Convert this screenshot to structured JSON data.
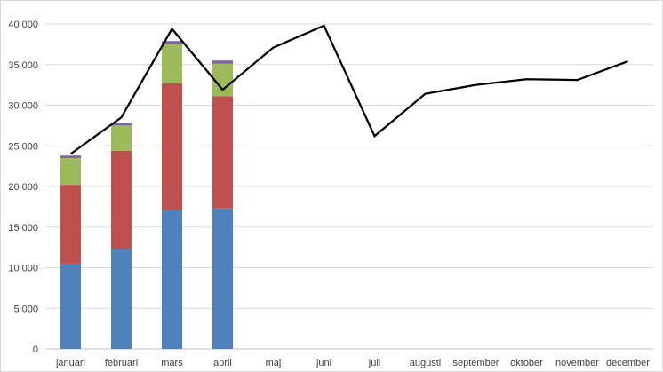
{
  "chart_data": {
    "type": "bar",
    "stacked": true,
    "categories": [
      "januari",
      "februari",
      "mars",
      "april",
      "maj",
      "juni",
      "juli",
      "augusti",
      "september",
      "oktober",
      "november",
      "december"
    ],
    "series": [
      {
        "type": "bar",
        "color": "#4f81bd",
        "values": [
          10500,
          12300,
          17100,
          17300,
          null,
          null,
          null,
          null,
          null,
          null,
          null,
          null
        ]
      },
      {
        "type": "bar",
        "color": "#c0504d",
        "values": [
          9700,
          12100,
          15600,
          13800,
          null,
          null,
          null,
          null,
          null,
          null,
          null,
          null
        ]
      },
      {
        "type": "bar",
        "color": "#9bbb59",
        "values": [
          3300,
          3100,
          4800,
          4000,
          null,
          null,
          null,
          null,
          null,
          null,
          null,
          null
        ]
      },
      {
        "type": "bar",
        "color": "#8064a2",
        "values": [
          300,
          300,
          400,
          400,
          null,
          null,
          null,
          null,
          null,
          null,
          null,
          null
        ]
      },
      {
        "type": "line",
        "color": "#000000",
        "values": [
          24000,
          28500,
          39400,
          31900,
          37100,
          39800,
          26200,
          31400,
          32500,
          33200,
          33100,
          35400
        ]
      }
    ],
    "ylim": [
      0,
      40000
    ],
    "yticks": [
      0,
      5000,
      10000,
      15000,
      20000,
      25000,
      30000,
      35000,
      40000
    ],
    "ytick_labels": [
      "0",
      "5 000",
      "10 000",
      "15 000",
      "20 000",
      "25 000",
      "30 000",
      "35 000",
      "40 000"
    ],
    "grid": true,
    "legend": "none",
    "title": "",
    "xlabel": "",
    "ylabel": ""
  }
}
